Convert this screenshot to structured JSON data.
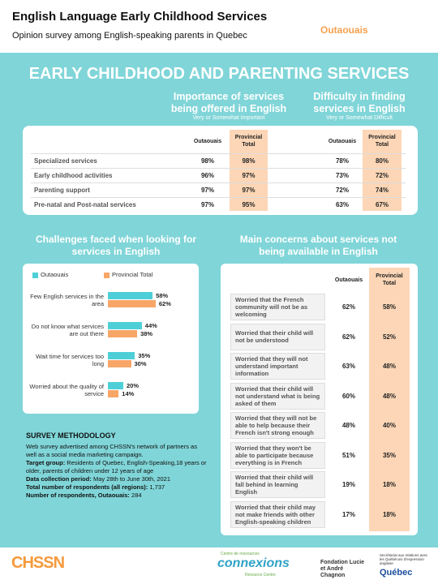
{
  "header": {
    "title": "English Language Early Childhood Services",
    "subtitle": "Opinion survey among English-speaking parents in Quebec",
    "region": "Outaouais"
  },
  "section_title": "EARLY CHILDHOOD AND PARENTING SERVICES",
  "services_table": {
    "group_headers": [
      {
        "title": "Importance of services being offered in English",
        "note": "Very or Somewhat Important"
      },
      {
        "title": "Difficulty in finding services in English",
        "note": "Very or Somewhat Difficult"
      }
    ],
    "columns": [
      "Outaouais",
      "Provincial Total",
      "Outaouais",
      "Provincial Total"
    ],
    "rows": [
      [
        "Specialized services",
        "98%",
        "98%",
        "78%",
        "80%"
      ],
      [
        "Early childhood activities",
        "96%",
        "97%",
        "73%",
        "72%"
      ],
      [
        "Parenting support",
        "97%",
        "97%",
        "72%",
        "74%"
      ],
      [
        "Pre-natal and Post-natal services",
        "97%",
        "95%",
        "63%",
        "67%"
      ]
    ]
  },
  "chart_data": {
    "type": "bar",
    "orientation": "horizontal",
    "title": "Challenges faced when looking for services in English",
    "categories": [
      "Few English services in the area",
      "Do not know what services are out there",
      "Wait time for services too long",
      "Worried about the quality of service"
    ],
    "series": [
      {
        "name": "Outaouais",
        "color": "#4ecfd7",
        "values": [
          58,
          44,
          35,
          20
        ],
        "value_labels": [
          "58%",
          "44%",
          "35%",
          "20%"
        ]
      },
      {
        "name": "Provincial Total",
        "color": "#f7a668",
        "values": [
          62,
          38,
          30,
          14
        ],
        "value_labels": [
          "62%",
          "38%",
          "30%",
          "14%"
        ]
      }
    ],
    "legend": "top-left"
  },
  "methodology": {
    "title": "SURVEY METHODOLOGY",
    "description": "Web survey advertised among CHSSN's network of partners as well as a social media marketing campaign.",
    "items": [
      {
        "label": "Target group:",
        "text": "Residents of Quebec, English-Speaking,18 years or older, parents of children under 12 years of age"
      },
      {
        "label": "Data collection period:",
        "text": "May 28th to June 30th, 2021"
      },
      {
        "label": "Total number of respondents (all regions):",
        "text": "1,737"
      },
      {
        "label": "Number of respondents, Outaouais:",
        "text": "284"
      }
    ]
  },
  "concerns_table": {
    "title": "Main concerns about services not being available in English",
    "columns": [
      "Outaouais",
      "Provincial Total"
    ],
    "rows": [
      [
        "Worried that the French community will not be as welcoming",
        "62%",
        "58%"
      ],
      [
        "Worried that their child will not be understood",
        "62%",
        "52%"
      ],
      [
        "Worried that they will not understand important information",
        "63%",
        "48%"
      ],
      [
        "Worried that their child will not understand what is being asked of them",
        "60%",
        "48%"
      ],
      [
        "Worried that they will not be able to help because their French isn't strong enough",
        "48%",
        "40%"
      ],
      [
        "Worried that they won't be able to participate because everything is in French",
        "51%",
        "35%"
      ],
      [
        "Worried that their child will fall behind in learning English",
        "19%",
        "18%"
      ],
      [
        "Worried that their child may not make friends with other English-speaking children",
        "17%",
        "18%"
      ]
    ]
  },
  "footer": {
    "logos": [
      "CHSSN",
      "Centre de ressources",
      "connexions",
      "Resource Centre",
      "Fondation Lucie et André Chagnon",
      "Secrétariat aux relations avec les Québécois d'expression anglaise",
      "Québec"
    ]
  }
}
